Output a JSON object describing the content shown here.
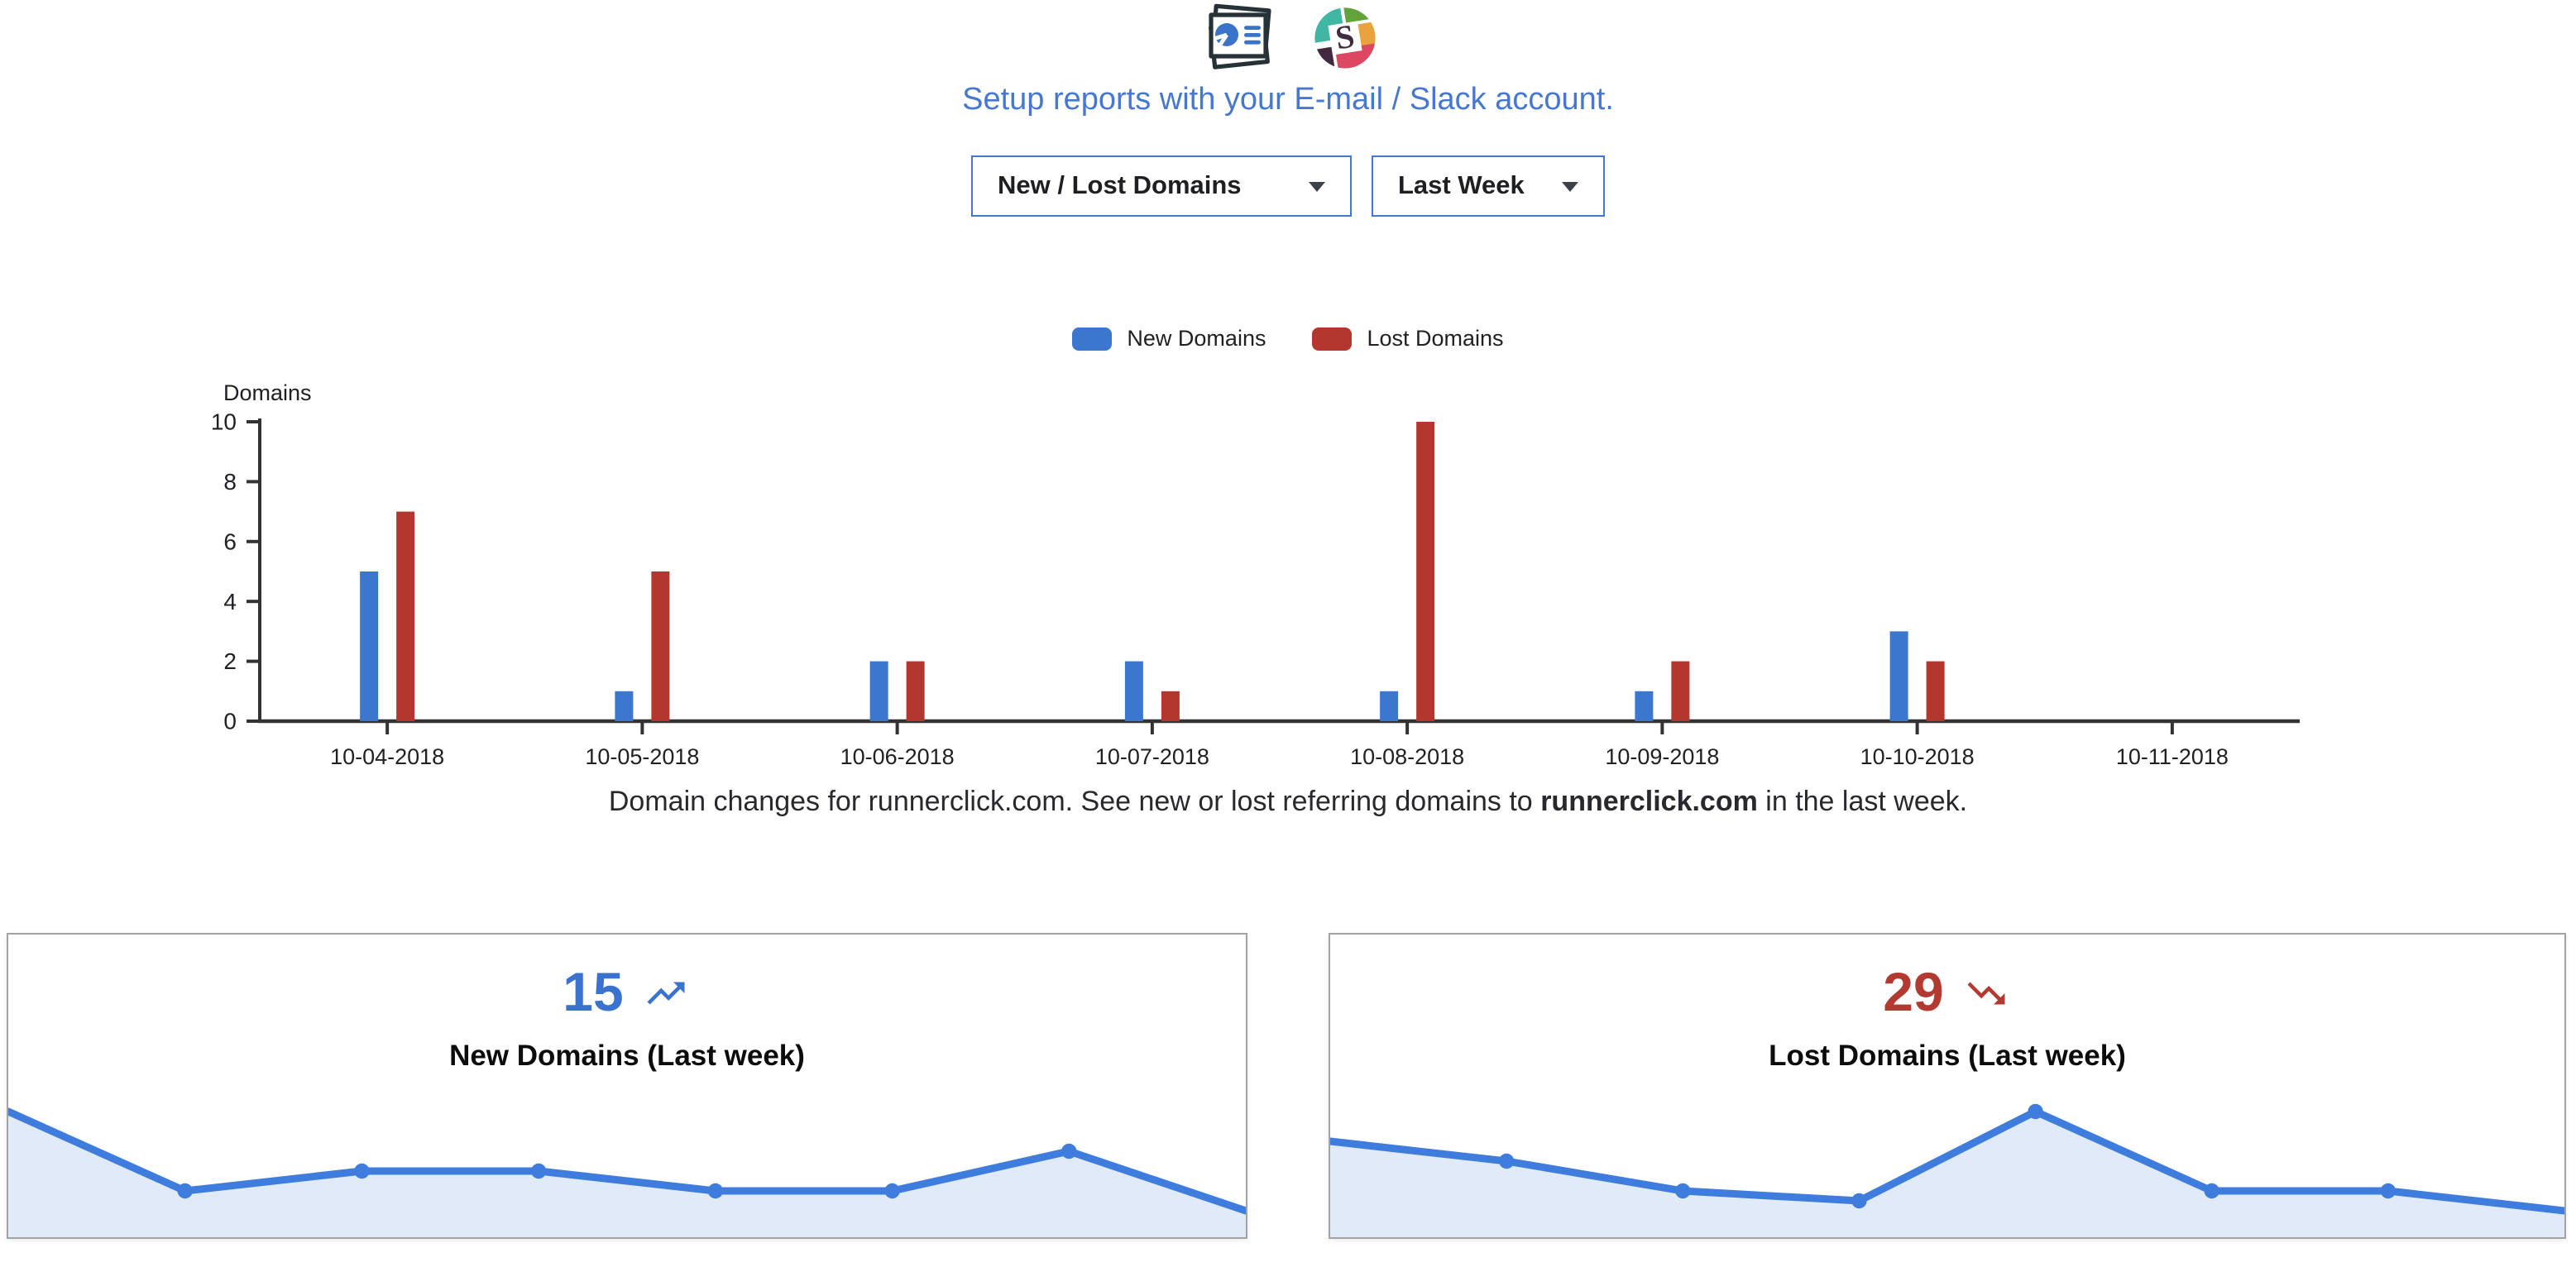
{
  "header": {
    "setup_link": "Setup reports with your E-mail / Slack account."
  },
  "filters": {
    "report_type_value": "New / Lost Domains",
    "period_value": "Last Week"
  },
  "legend": [
    {
      "label": "New Domains",
      "color": "#3b77cf"
    },
    {
      "label": "Lost Domains",
      "color": "#b4372f"
    }
  ],
  "chart_data": [
    {
      "type": "bar",
      "title": "",
      "ylabel": "Domains",
      "xlabel": "",
      "ylim": [
        0,
        10
      ],
      "yticks": [
        0,
        2,
        4,
        6,
        8,
        10
      ],
      "grid": false,
      "legend_position": "top",
      "categories": [
        "10-04-2018",
        "10-05-2018",
        "10-06-2018",
        "10-07-2018",
        "10-08-2018",
        "10-09-2018",
        "10-10-2018",
        "10-11-2018"
      ],
      "series": [
        {
          "name": "New Domains",
          "color": "#3b77cf",
          "values": [
            5,
            1,
            2,
            2,
            1,
            1,
            3,
            0
          ]
        },
        {
          "name": "Lost Domains",
          "color": "#b4372f",
          "values": [
            7,
            5,
            2,
            1,
            10,
            2,
            2,
            0
          ]
        }
      ]
    },
    {
      "type": "area",
      "title": "New Domains sparkline (last week, daily)",
      "x": [
        "10-04-2018",
        "10-05-2018",
        "10-06-2018",
        "10-07-2018",
        "10-08-2018",
        "10-09-2018",
        "10-10-2018",
        "10-11-2018"
      ],
      "values": [
        5,
        1,
        2,
        2,
        1,
        1,
        3,
        0
      ],
      "line_color": "#3e7ddd",
      "fill_color": "#e0eaf9"
    },
    {
      "type": "area",
      "title": "Lost Domains sparkline (last week, daily)",
      "x": [
        "10-04-2018",
        "10-05-2018",
        "10-06-2018",
        "10-07-2018",
        "10-08-2018",
        "10-09-2018",
        "10-10-2018",
        "10-11-2018"
      ],
      "values": [
        7,
        5,
        2,
        1,
        10,
        2,
        2,
        0
      ],
      "line_color": "#3e7ddd",
      "fill_color": "#e0eaf9"
    }
  ],
  "caption": {
    "prefix": "Domain changes for runnerclick.com. See new or lost referring domains to ",
    "bold": "runnerclick.com",
    "suffix": " in the last week."
  },
  "cards": [
    {
      "value": "15",
      "trend": "up",
      "accent": "#3a72cf",
      "title": "New Domains (Last week)"
    },
    {
      "value": "29",
      "trend": "down",
      "accent": "#b23a31",
      "title": "Lost Domains (Last week)"
    }
  ]
}
